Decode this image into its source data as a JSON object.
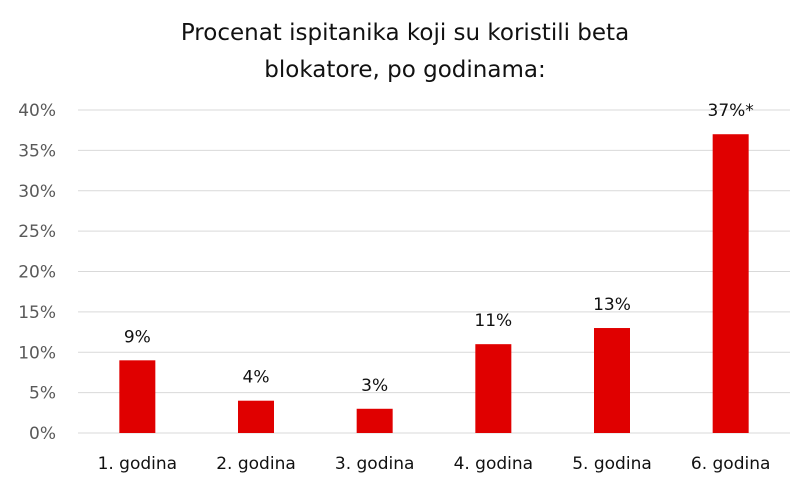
{
  "chart_data": {
    "type": "bar",
    "title": [
      "Procenat ispitanika koji su koristili beta",
      "blokatore, po godinama:"
    ],
    "categories": [
      "1. godina",
      "2. godina",
      "3. godina",
      "4. godina",
      "5. godina",
      "6. godina"
    ],
    "values": [
      9,
      4,
      3,
      11,
      13,
      37
    ],
    "data_labels": [
      "9%",
      "4%",
      "3%",
      "11%",
      "13%",
      "37%*"
    ],
    "xlabel": "",
    "ylabel": "",
    "ylim": [
      0,
      40
    ],
    "yticks": [
      0,
      5,
      10,
      15,
      20,
      25,
      30,
      35,
      40
    ],
    "ytick_labels": [
      "0%",
      "5%",
      "10%",
      "15%",
      "20%",
      "25%",
      "30%",
      "35%",
      "40%"
    ],
    "grid": true,
    "legend": "none",
    "bar_color": "#e00000",
    "grid_color": "#d9d9d9"
  }
}
